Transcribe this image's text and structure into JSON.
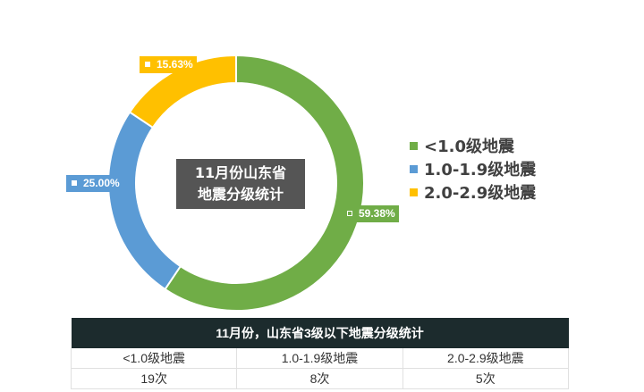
{
  "chart_data": {
    "type": "pie",
    "variant": "donut",
    "title_lines": [
      "11月份山东省",
      "地震分级统计"
    ],
    "categories": [
      "<1.0级地震",
      "1.0-1.9级地震",
      "2.0-2.9级地震"
    ],
    "values": [
      59.38,
      25.0,
      15.63
    ],
    "data_labels": [
      "59.38%",
      "25.00%",
      "15.63%"
    ],
    "colors": [
      "#70ad47",
      "#5b9bd5",
      "#ffc000"
    ],
    "legend_position": "right"
  },
  "table": {
    "header": "11月份，山东省3级以下地震分级统计",
    "rows": [
      {
        "category": "<1.0级地震",
        "count": "19次"
      },
      {
        "category": "1.0-1.9级地震",
        "count": "8次"
      },
      {
        "category": "2.0-2.9级地震",
        "count": "5次"
      }
    ]
  }
}
